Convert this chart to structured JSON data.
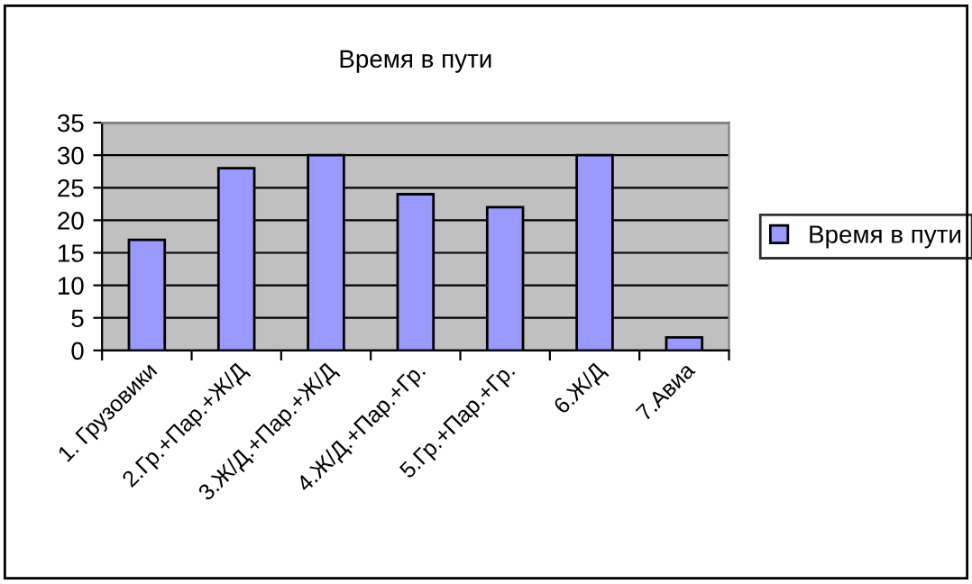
{
  "chart_data": {
    "type": "bar",
    "title": "Время в пути",
    "categories": [
      "1. Грузовики",
      "2.Гр.+Пар.+Ж/Д",
      "3.Ж/Д.+Пар.+Ж/Д",
      "4.Ж/Д.+Пар.+Гр.",
      "5.Гр.+Пар.+Гр.",
      "6.Ж/Д",
      "7.Авиа"
    ],
    "series": [
      {
        "name": "Время в пути",
        "color": "#9999ff",
        "values": [
          17,
          28,
          30,
          24,
          22,
          30,
          2
        ]
      }
    ],
    "ylim": [
      0,
      35
    ],
    "yticks": [
      0,
      5,
      10,
      15,
      20,
      25,
      30,
      35
    ],
    "grid": "y",
    "legend": "right"
  }
}
